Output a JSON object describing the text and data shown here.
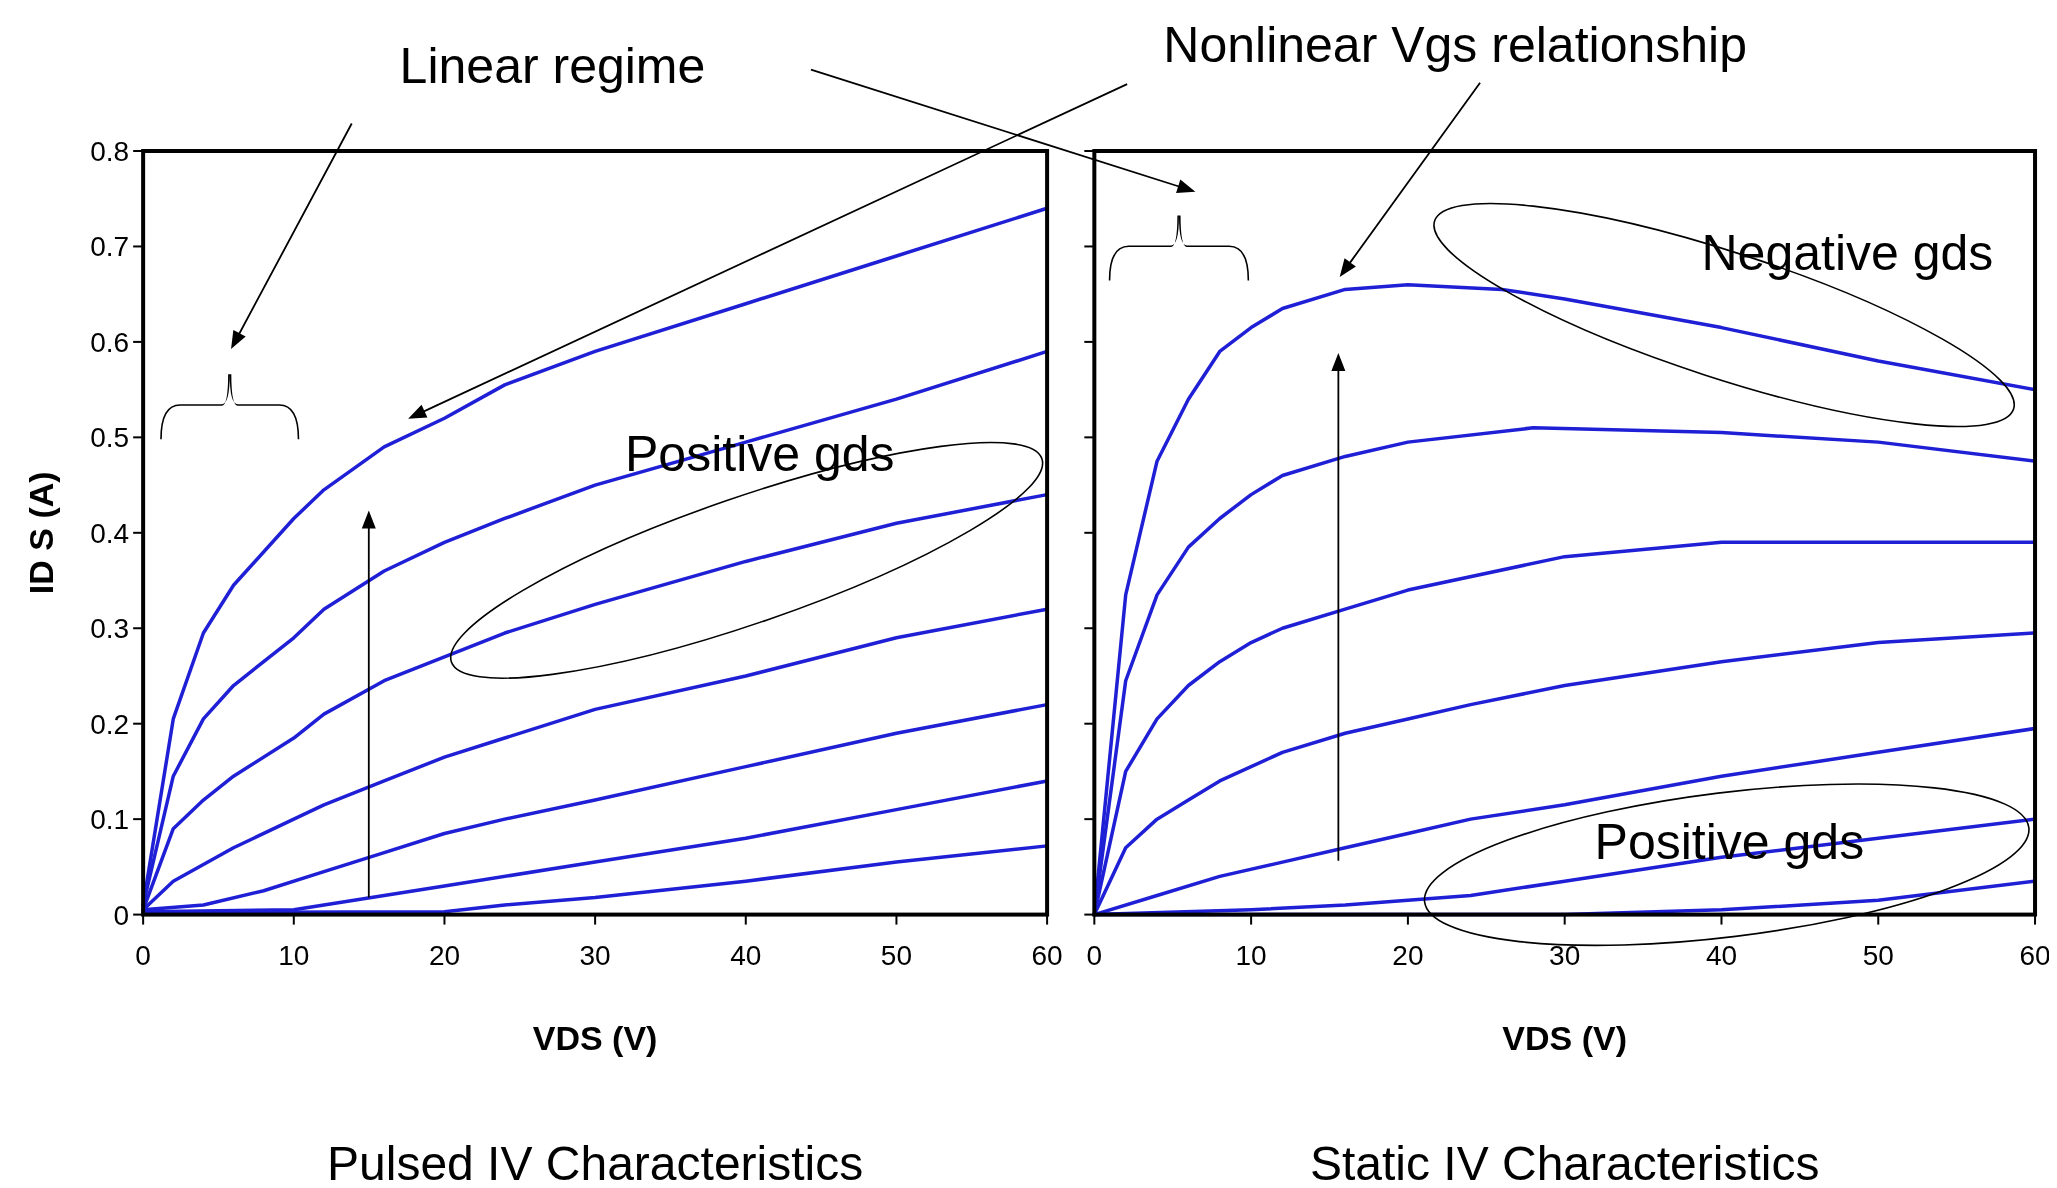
{
  "chart_data": [
    {
      "type": "line",
      "title": "Pulsed IV Characteristics",
      "xlabel": "VDS (V)",
      "ylabel": "ID S (A)",
      "xlim": [
        0,
        60
      ],
      "xticks": [
        0,
        10,
        20,
        30,
        40,
        50,
        60
      ],
      "ylim": [
        0,
        0.8
      ],
      "yticks": [
        0,
        0.1,
        0.2,
        0.3,
        0.4,
        0.5,
        0.6,
        0.7,
        0.8
      ],
      "annotations": [
        "Linear regime",
        "Positive gds"
      ],
      "series": [
        {
          "color": "#1f1fd6",
          "x": [
            0,
            2,
            4,
            6,
            10,
            12,
            16,
            20,
            24,
            30,
            40,
            50,
            60
          ],
          "values": [
            0.01,
            0.205,
            0.295,
            0.345,
            0.415,
            0.445,
            0.49,
            0.52,
            0.555,
            0.59,
            0.64,
            0.69,
            0.74
          ]
        },
        {
          "color": "#1f1fd6",
          "x": [
            0,
            2,
            4,
            6,
            10,
            12,
            16,
            20,
            24,
            30,
            40,
            50,
            60
          ],
          "values": [
            0.01,
            0.145,
            0.205,
            0.24,
            0.29,
            0.32,
            0.36,
            0.39,
            0.415,
            0.45,
            0.495,
            0.54,
            0.59
          ]
        },
        {
          "color": "#1f1fd6",
          "x": [
            0,
            2,
            4,
            6,
            10,
            12,
            16,
            20,
            24,
            30,
            40,
            50,
            60
          ],
          "values": [
            0.005,
            0.09,
            0.12,
            0.145,
            0.185,
            0.21,
            0.245,
            0.27,
            0.295,
            0.325,
            0.37,
            0.41,
            0.44
          ]
        },
        {
          "color": "#1f1fd6",
          "x": [
            0,
            2,
            6,
            10,
            12,
            16,
            20,
            24,
            30,
            40,
            50,
            60
          ],
          "values": [
            0.005,
            0.035,
            0.07,
            0.1,
            0.115,
            0.14,
            0.165,
            0.185,
            0.215,
            0.25,
            0.29,
            0.32
          ]
        },
        {
          "color": "#1f1fd6",
          "x": [
            0,
            4,
            8,
            12,
            16,
            20,
            24,
            30,
            40,
            50,
            60
          ],
          "values": [
            0.005,
            0.01,
            0.025,
            0.045,
            0.065,
            0.085,
            0.1,
            0.12,
            0.155,
            0.19,
            0.22
          ]
        },
        {
          "color": "#1f1fd6",
          "x": [
            0,
            10,
            14,
            20,
            30,
            40,
            50,
            60
          ],
          "values": [
            0.003,
            0.005,
            0.015,
            0.03,
            0.055,
            0.08,
            0.11,
            0.14
          ]
        },
        {
          "color": "#1f1fd6",
          "x": [
            0,
            20,
            24,
            30,
            40,
            50,
            60
          ],
          "values": [
            0.002,
            0.003,
            0.01,
            0.018,
            0.035,
            0.055,
            0.072
          ]
        }
      ]
    },
    {
      "type": "line",
      "title": "Static IV Characteristics",
      "xlabel": "VDS (V)",
      "xlim": [
        0,
        60
      ],
      "xticks": [
        0,
        10,
        20,
        30,
        40,
        50,
        60
      ],
      "ylim": [
        0,
        0.8
      ],
      "yticks": [
        {
          "value": 0,
          "label": null
        },
        {
          "value": 0.1,
          "label": null
        },
        {
          "value": 0.2,
          "label": null
        },
        {
          "value": 0.3,
          "label": null
        },
        {
          "value": 0.4,
          "label": null
        },
        {
          "value": 0.5,
          "label": null
        },
        {
          "value": 0.6,
          "label": null
        },
        {
          "value": 0.7,
          "label": null
        },
        {
          "value": 0.8,
          "label": null
        }
      ],
      "tick_labels": "x",
      "annotations": [
        "Nonlinear Vgs relationship",
        "Negative gds",
        "Positive gds"
      ],
      "series": [
        {
          "color": "#1f1fd6",
          "x": [
            0,
            2,
            4,
            6,
            8,
            10,
            12,
            16,
            20,
            26,
            30,
            40,
            50,
            60
          ],
          "values": [
            0,
            0.335,
            0.475,
            0.54,
            0.59,
            0.615,
            0.635,
            0.655,
            0.66,
            0.655,
            0.645,
            0.615,
            0.58,
            0.55
          ]
        },
        {
          "color": "#1f1fd6",
          "x": [
            0,
            2,
            4,
            6,
            8,
            10,
            12,
            16,
            20,
            28,
            40,
            50,
            60
          ],
          "values": [
            0,
            0.245,
            0.335,
            0.385,
            0.415,
            0.44,
            0.46,
            0.48,
            0.495,
            0.51,
            0.505,
            0.495,
            0.475
          ]
        },
        {
          "color": "#1f1fd6",
          "x": [
            0,
            2,
            4,
            6,
            8,
            10,
            12,
            16,
            20,
            30,
            40,
            50,
            60
          ],
          "values": [
            0,
            0.15,
            0.205,
            0.24,
            0.265,
            0.285,
            0.3,
            0.32,
            0.34,
            0.375,
            0.39,
            0.39,
            0.39
          ]
        },
        {
          "color": "#1f1fd6",
          "x": [
            0,
            2,
            4,
            6,
            8,
            12,
            16,
            20,
            24,
            30,
            40,
            50,
            60
          ],
          "values": [
            0,
            0.07,
            0.1,
            0.12,
            0.14,
            0.17,
            0.19,
            0.205,
            0.22,
            0.24,
            0.265,
            0.285,
            0.295
          ]
        },
        {
          "color": "#1f1fd6",
          "x": [
            0,
            4,
            8,
            12,
            16,
            20,
            24,
            30,
            40,
            50,
            60
          ],
          "values": [
            0,
            0.02,
            0.04,
            0.055,
            0.07,
            0.085,
            0.1,
            0.115,
            0.145,
            0.17,
            0.195
          ]
        },
        {
          "color": "#1f1fd6",
          "x": [
            0,
            10,
            16,
            20,
            24,
            30,
            40,
            50,
            60
          ],
          "values": [
            0,
            0.005,
            0.01,
            0.015,
            0.02,
            0.035,
            0.06,
            0.08,
            0.1
          ]
        },
        {
          "color": "#1f1fd6",
          "x": [
            0,
            20,
            30,
            40,
            50,
            60
          ],
          "values": [
            0,
            0,
            0,
            0.005,
            0.015,
            0.035
          ]
        }
      ]
    }
  ]
}
